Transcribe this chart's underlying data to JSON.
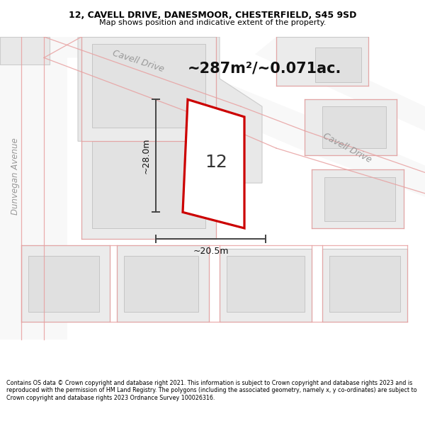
{
  "title_line1": "12, CAVELL DRIVE, DANESMOOR, CHESTERFIELD, S45 9SD",
  "title_line2": "Map shows position and indicative extent of the property.",
  "area_text": "~287m²/~0.071ac.",
  "label_12": "12",
  "dim_vertical": "~28.0m",
  "dim_horizontal": "~20.5m",
  "street_cavell_drive_1": "Cavell Drive",
  "street_cavell_drive_2": "Cavell Drive",
  "street_dunvegan": "Dunvegan Avenue",
  "footer": "Contains OS data © Crown copyright and database right 2021. This information is subject to Crown copyright and database rights 2023 and is reproduced with the permission of HM Land Registry. The polygons (including the associated geometry, namely x, y co-ordinates) are subject to Crown copyright and database rights 2023 Ordnance Survey 100026316.",
  "bg_color": "#f8f8f8",
  "block_fill": "#e8e8e8",
  "block_stroke": "#cccccc",
  "road_fill": "#f0f0f0",
  "pink_color": "#e8a0a0",
  "property_color": "#cc0000",
  "dim_color": "#444444",
  "street_color": "#aaaaaa",
  "title_bg": "#ffffff",
  "footer_bg": "#ffffff",
  "title_fontsize": 9,
  "subtitle_fontsize": 8,
  "area_fontsize": 15,
  "label_fontsize": 18,
  "dim_fontsize": 9,
  "street_fontsize": 9,
  "footer_fontsize": 5.8
}
